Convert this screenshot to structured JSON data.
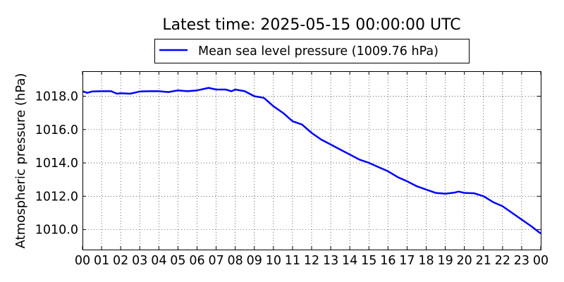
{
  "chart_data": {
    "type": "line",
    "title": "Latest time: 2025-05-15 00:00:00 UTC",
    "ylabel": "Atmospheric pressure (hPa)",
    "xlabel": "",
    "legend": {
      "placement": "top-center",
      "entries": [
        "Mean sea level pressure (1009.76 hPa)"
      ]
    },
    "xlim": [
      0,
      24
    ],
    "ylim": [
      1008.8,
      1019.5
    ],
    "grid": true,
    "x_ticks": [
      "00",
      "01",
      "02",
      "03",
      "04",
      "05",
      "06",
      "07",
      "08",
      "09",
      "10",
      "11",
      "12",
      "13",
      "14",
      "15",
      "16",
      "17",
      "18",
      "19",
      "20",
      "21",
      "22",
      "23",
      "00"
    ],
    "y_ticks": [
      "1010.0",
      "1012.0",
      "1014.0",
      "1016.0",
      "1018.0"
    ],
    "series": [
      {
        "name": "Mean sea level pressure (1009.76 hPa)",
        "color": "#0000ff",
        "x": [
          0,
          0.25,
          0.5,
          1,
          1.5,
          1.8,
          2,
          2.5,
          3,
          3.5,
          4,
          4.5,
          5,
          5.5,
          6,
          6.3,
          6.6,
          7,
          7.5,
          7.8,
          8,
          8.5,
          9,
          9.5,
          10,
          10.5,
          11,
          11.5,
          12,
          12.5,
          13,
          13.5,
          14,
          14.5,
          15,
          15.5,
          16,
          16.5,
          17,
          17.5,
          18,
          18.5,
          19,
          19.5,
          19.7,
          20,
          20.5,
          21,
          21.5,
          22,
          22.5,
          23,
          23.5,
          24
        ],
        "y": [
          1018.3,
          1018.2,
          1018.28,
          1018.3,
          1018.3,
          1018.15,
          1018.18,
          1018.15,
          1018.28,
          1018.3,
          1018.3,
          1018.25,
          1018.35,
          1018.3,
          1018.35,
          1018.42,
          1018.5,
          1018.4,
          1018.4,
          1018.3,
          1018.4,
          1018.3,
          1018.0,
          1017.9,
          1017.4,
          1017.0,
          1016.5,
          1016.3,
          1015.8,
          1015.4,
          1015.1,
          1014.8,
          1014.5,
          1014.2,
          1014.0,
          1013.75,
          1013.5,
          1013.15,
          1012.9,
          1012.6,
          1012.4,
          1012.2,
          1012.15,
          1012.22,
          1012.28,
          1012.2,
          1012.18,
          1012.0,
          1011.65,
          1011.4,
          1011.0,
          1010.6,
          1010.2,
          1009.76
        ]
      }
    ]
  }
}
